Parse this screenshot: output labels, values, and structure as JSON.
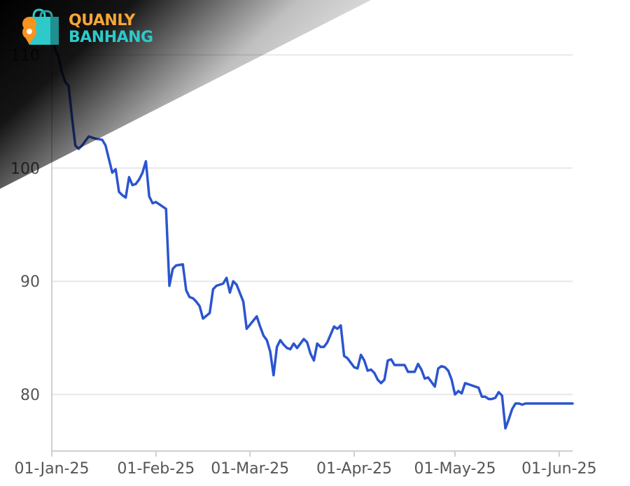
{
  "brand": {
    "line1": "QUANLY",
    "line2": "BANHANG",
    "colors": {
      "line1": "#f7a637",
      "line2": "#2ec9c9",
      "bag": "#2ec9c9",
      "pin": "#f7931e"
    }
  },
  "chart_data": {
    "type": "line",
    "title": "",
    "xlabel": "",
    "ylabel": "",
    "ylim": [
      75,
      113
    ],
    "yticks": [
      80,
      90,
      100,
      110
    ],
    "ytick_labels": [
      "80",
      "90",
      "100",
      "110"
    ],
    "xlim": [
      "2025-01-01",
      "2025-06-05"
    ],
    "xticks": [
      "2025-01-01",
      "2025-02-01",
      "2025-03-01",
      "2025-04-01",
      "2025-05-01",
      "2025-06-01"
    ],
    "xtick_labels": [
      "01-Jan-25",
      "01-Feb-25",
      "01-Mar-25",
      "01-Apr-25",
      "01-May-25",
      "01-Jun-25"
    ],
    "grid": true,
    "line_color": "#2b55cf",
    "series": [
      {
        "x": [
          "2025-01-01",
          "2025-01-02",
          "2025-01-03",
          "2025-01-04",
          "2025-01-05",
          "2025-01-06",
          "2025-01-07",
          "2025-01-08",
          "2025-01-09",
          "2025-01-10",
          "2025-01-12",
          "2025-01-14",
          "2025-01-16",
          "2025-01-17",
          "2025-01-19",
          "2025-01-20",
          "2025-01-21",
          "2025-01-22",
          "2025-01-23",
          "2025-01-24",
          "2025-01-25",
          "2025-01-26",
          "2025-01-27",
          "2025-01-28",
          "2025-01-29",
          "2025-01-30",
          "2025-01-31",
          "2025-02-01",
          "2025-02-02",
          "2025-02-03",
          "2025-02-04",
          "2025-02-05",
          "2025-02-06",
          "2025-02-07",
          "2025-02-09",
          "2025-02-10",
          "2025-02-11",
          "2025-02-12",
          "2025-02-13",
          "2025-02-14",
          "2025-02-15",
          "2025-02-17",
          "2025-02-18",
          "2025-02-19",
          "2025-02-20",
          "2025-02-21",
          "2025-02-22",
          "2025-02-23",
          "2025-02-24",
          "2025-02-25",
          "2025-02-27",
          "2025-02-28",
          "2025-03-03",
          "2025-03-04",
          "2025-03-05",
          "2025-03-06",
          "2025-03-07",
          "2025-03-08",
          "2025-03-09",
          "2025-03-10",
          "2025-03-11",
          "2025-03-12",
          "2025-03-13",
          "2025-03-14",
          "2025-03-15",
          "2025-03-16",
          "2025-03-17",
          "2025-03-18",
          "2025-03-19",
          "2025-03-20",
          "2025-03-21",
          "2025-03-22",
          "2025-03-23",
          "2025-03-24",
          "2025-03-25",
          "2025-03-26",
          "2025-03-27",
          "2025-03-28",
          "2025-03-29",
          "2025-03-30",
          "2025-03-31",
          "2025-04-01",
          "2025-04-02",
          "2025-04-03",
          "2025-04-04",
          "2025-04-05",
          "2025-04-06",
          "2025-04-07",
          "2025-04-08",
          "2025-04-09",
          "2025-04-10",
          "2025-04-11",
          "2025-04-12",
          "2025-04-13",
          "2025-04-14",
          "2025-04-15",
          "2025-04-16",
          "2025-04-17",
          "2025-04-18",
          "2025-04-19",
          "2025-04-20",
          "2025-04-21",
          "2025-04-22",
          "2025-04-23",
          "2025-04-24",
          "2025-04-25",
          "2025-04-26",
          "2025-04-27",
          "2025-04-28",
          "2025-04-29",
          "2025-04-30",
          "2025-05-01",
          "2025-05-02",
          "2025-05-03",
          "2025-05-04",
          "2025-05-05",
          "2025-05-06",
          "2025-05-07",
          "2025-05-08",
          "2025-05-09",
          "2025-05-10",
          "2025-05-11",
          "2025-05-12",
          "2025-05-13",
          "2025-05-14",
          "2025-05-15",
          "2025-05-16",
          "2025-05-17",
          "2025-05-18",
          "2025-05-19",
          "2025-05-20",
          "2025-05-21",
          "2025-05-22",
          "2025-05-23",
          "2025-05-24",
          "2025-05-25",
          "2025-05-26",
          "2025-05-27",
          "2025-05-28",
          "2025-05-29",
          "2025-05-30",
          "2025-05-31",
          "2025-06-01",
          "2025-06-02",
          "2025-06-03",
          "2025-06-04",
          "2025-06-05"
        ],
        "y": [
          112.0,
          110.5,
          109.8,
          108.5,
          107.6,
          107.3,
          104.5,
          102.0,
          101.7,
          102.0,
          102.8,
          102.6,
          102.5,
          102.0,
          99.6,
          99.9,
          97.9,
          97.6,
          97.4,
          99.2,
          98.5,
          98.6,
          99.0,
          99.6,
          100.6,
          97.5,
          96.9,
          97.0,
          96.8,
          96.6,
          96.4,
          89.6,
          91.1,
          91.4,
          91.5,
          89.2,
          88.6,
          88.5,
          88.2,
          87.8,
          86.7,
          87.2,
          89.3,
          89.6,
          89.7,
          89.8,
          90.3,
          89.0,
          90.0,
          89.7,
          88.2,
          85.8,
          86.9,
          86.0,
          85.2,
          84.8,
          83.8,
          81.7,
          84.2,
          84.8,
          84.4,
          84.1,
          84.0,
          84.5,
          84.1,
          84.5,
          84.9,
          84.6,
          83.6,
          83.0,
          84.5,
          84.2,
          84.2,
          84.6,
          85.3,
          86.0,
          85.8,
          86.1,
          83.4,
          83.2,
          82.8,
          82.4,
          82.3,
          83.5,
          83.0,
          82.1,
          82.2,
          81.9,
          81.3,
          81.0,
          81.3,
          83.0,
          83.1,
          82.6,
          82.6,
          82.6,
          82.6,
          82.0,
          82.0,
          82.0,
          82.7,
          82.2,
          81.4,
          81.5,
          81.1,
          80.7,
          82.3,
          82.5,
          82.4,
          82.1,
          81.3,
          80.0,
          80.3,
          80.1,
          81.0,
          80.9,
          80.8,
          80.7,
          80.6,
          79.8,
          79.8,
          79.6,
          79.6,
          79.7,
          80.2,
          79.9,
          77.0,
          77.8,
          78.7,
          79.2,
          79.2,
          79.1,
          79.2,
          79.2,
          79.2,
          79.2,
          79.2,
          79.2,
          79.2,
          79.2,
          79.2,
          79.2,
          79.2,
          79.2,
          79.2,
          79.2,
          79.2
        ]
      }
    ]
  }
}
